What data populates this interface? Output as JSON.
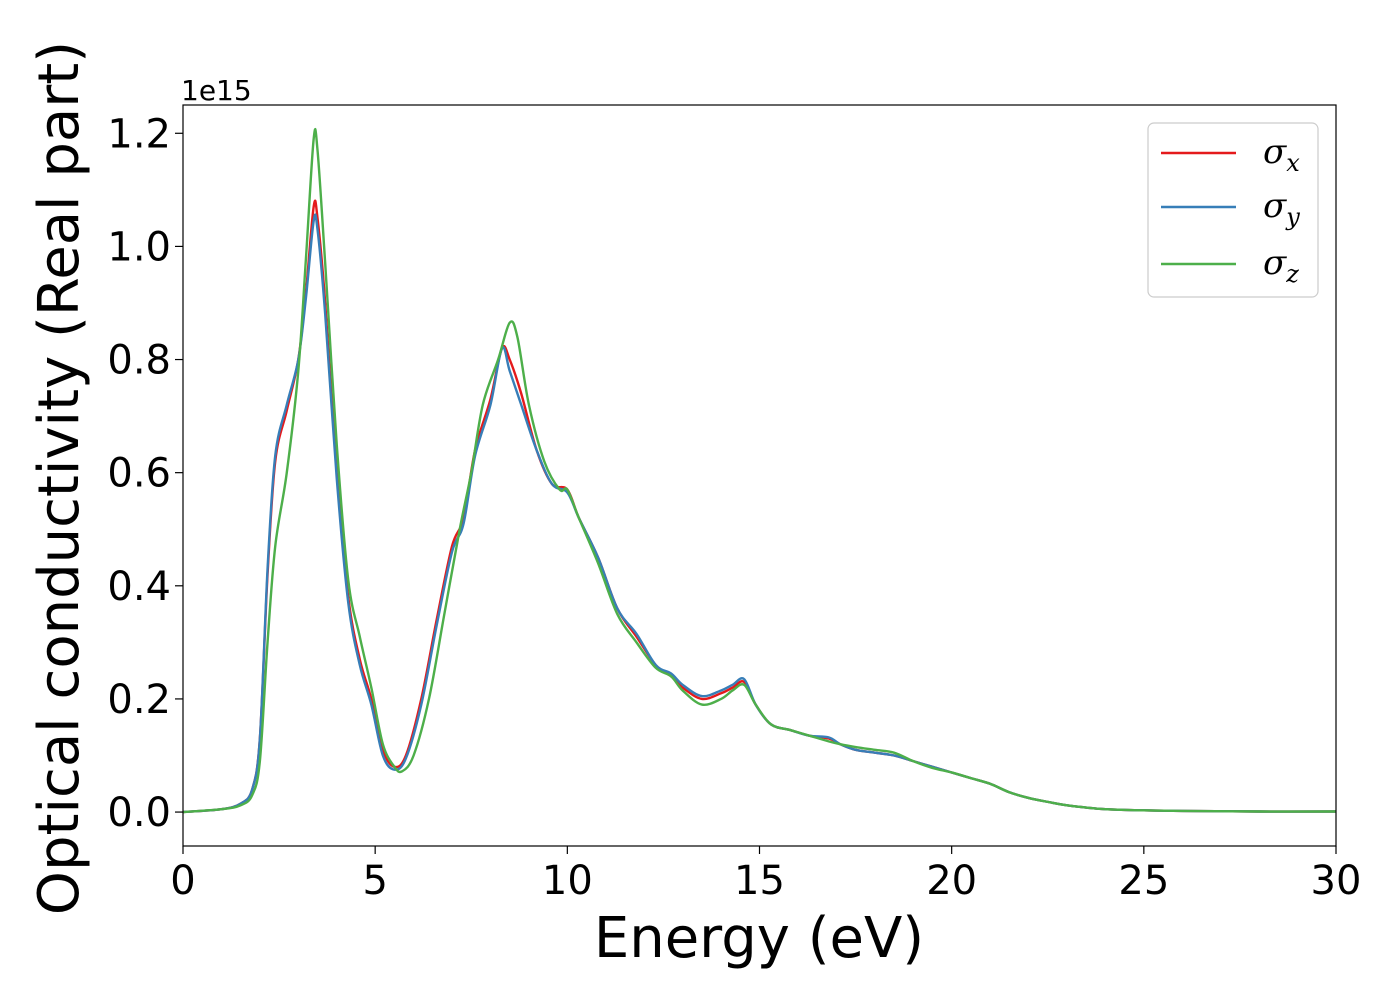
{
  "chart_data": {
    "type": "line",
    "xlabel": "Energy (eV)",
    "ylabel": "Optical conductivity (Real part)",
    "y_offset_label": "1e15",
    "xlim": [
      0,
      30
    ],
    "ylim": [
      -0.06,
      1.25
    ],
    "x_ticks": [
      0,
      5,
      10,
      15,
      20,
      25,
      30
    ],
    "x_tick_labels": [
      "0",
      "5",
      "10",
      "15",
      "20",
      "25",
      "30"
    ],
    "y_ticks": [
      0.0,
      0.2,
      0.4,
      0.6,
      0.8,
      1.0,
      1.2
    ],
    "y_tick_labels": [
      "0.0",
      "0.2",
      "0.4",
      "0.6",
      "0.8",
      "1.0",
      "1.2"
    ],
    "grid": false,
    "legend_position": "top-right",
    "series": [
      {
        "name": "σx",
        "symbol": "σ",
        "subscript": "x",
        "color": "#e41a1c",
        "points": [
          [
            0,
            0
          ],
          [
            1,
            0.005
          ],
          [
            1.5,
            0.015
          ],
          [
            1.8,
            0.04
          ],
          [
            2,
            0.13
          ],
          [
            2.2,
            0.42
          ],
          [
            2.4,
            0.62
          ],
          [
            2.7,
            0.71
          ],
          [
            3.0,
            0.8
          ],
          [
            3.2,
            0.92
          ],
          [
            3.4,
            1.07
          ],
          [
            3.5,
            1.05
          ],
          [
            3.7,
            0.9
          ],
          [
            4.0,
            0.6
          ],
          [
            4.3,
            0.38
          ],
          [
            4.6,
            0.27
          ],
          [
            4.9,
            0.2
          ],
          [
            5.2,
            0.11
          ],
          [
            5.5,
            0.08
          ],
          [
            5.8,
            0.1
          ],
          [
            6.2,
            0.2
          ],
          [
            6.6,
            0.34
          ],
          [
            7.0,
            0.47
          ],
          [
            7.3,
            0.52
          ],
          [
            7.6,
            0.64
          ],
          [
            8.0,
            0.73
          ],
          [
            8.3,
            0.82
          ],
          [
            8.5,
            0.8
          ],
          [
            8.8,
            0.74
          ],
          [
            9.2,
            0.64
          ],
          [
            9.6,
            0.58
          ],
          [
            10.0,
            0.57
          ],
          [
            10.3,
            0.52
          ],
          [
            10.8,
            0.45
          ],
          [
            11.3,
            0.36
          ],
          [
            11.8,
            0.31
          ],
          [
            12.3,
            0.26
          ],
          [
            12.7,
            0.24
          ],
          [
            13.0,
            0.22
          ],
          [
            13.5,
            0.2
          ],
          [
            14.0,
            0.21
          ],
          [
            14.3,
            0.22
          ],
          [
            14.6,
            0.23
          ],
          [
            14.9,
            0.19
          ],
          [
            15.3,
            0.155
          ],
          [
            15.8,
            0.145
          ],
          [
            16.3,
            0.135
          ],
          [
            16.8,
            0.13
          ],
          [
            17.1,
            0.12
          ],
          [
            17.5,
            0.11
          ],
          [
            18.0,
            0.105
          ],
          [
            18.5,
            0.1
          ],
          [
            19.0,
            0.09
          ],
          [
            19.5,
            0.08
          ],
          [
            20.0,
            0.07
          ],
          [
            20.5,
            0.06
          ],
          [
            21.0,
            0.05
          ],
          [
            21.5,
            0.035
          ],
          [
            22.0,
            0.025
          ],
          [
            22.5,
            0.018
          ],
          [
            23.0,
            0.012
          ],
          [
            24.0,
            0.005
          ],
          [
            25.0,
            0.003
          ],
          [
            26.0,
            0.002
          ],
          [
            28.0,
            0.001
          ],
          [
            30.0,
            0.001
          ]
        ]
      },
      {
        "name": "σy",
        "symbol": "σ",
        "subscript": "y",
        "color": "#377eb8",
        "points": [
          [
            0,
            0
          ],
          [
            1,
            0.005
          ],
          [
            1.5,
            0.015
          ],
          [
            1.8,
            0.04
          ],
          [
            2,
            0.13
          ],
          [
            2.2,
            0.43
          ],
          [
            2.4,
            0.63
          ],
          [
            2.7,
            0.72
          ],
          [
            3.0,
            0.8
          ],
          [
            3.2,
            0.91
          ],
          [
            3.4,
            1.045
          ],
          [
            3.5,
            1.03
          ],
          [
            3.7,
            0.88
          ],
          [
            4.0,
            0.59
          ],
          [
            4.3,
            0.37
          ],
          [
            4.6,
            0.26
          ],
          [
            4.9,
            0.19
          ],
          [
            5.2,
            0.1
          ],
          [
            5.5,
            0.075
          ],
          [
            5.8,
            0.095
          ],
          [
            6.2,
            0.19
          ],
          [
            6.6,
            0.33
          ],
          [
            7.0,
            0.46
          ],
          [
            7.3,
            0.51
          ],
          [
            7.6,
            0.63
          ],
          [
            8.0,
            0.72
          ],
          [
            8.3,
            0.82
          ],
          [
            8.5,
            0.78
          ],
          [
            8.8,
            0.72
          ],
          [
            9.2,
            0.64
          ],
          [
            9.6,
            0.58
          ],
          [
            10.0,
            0.565
          ],
          [
            10.3,
            0.52
          ],
          [
            10.8,
            0.45
          ],
          [
            11.3,
            0.36
          ],
          [
            11.8,
            0.315
          ],
          [
            12.3,
            0.26
          ],
          [
            12.7,
            0.245
          ],
          [
            13.0,
            0.225
          ],
          [
            13.5,
            0.205
          ],
          [
            14.0,
            0.215
          ],
          [
            14.3,
            0.225
          ],
          [
            14.6,
            0.235
          ],
          [
            14.9,
            0.19
          ],
          [
            15.3,
            0.155
          ],
          [
            15.8,
            0.145
          ],
          [
            16.3,
            0.135
          ],
          [
            16.8,
            0.132
          ],
          [
            17.1,
            0.12
          ],
          [
            17.5,
            0.11
          ],
          [
            18.0,
            0.105
          ],
          [
            18.5,
            0.1
          ],
          [
            19.0,
            0.09
          ],
          [
            19.5,
            0.08
          ],
          [
            20.0,
            0.07
          ],
          [
            20.5,
            0.06
          ],
          [
            21.0,
            0.05
          ],
          [
            21.5,
            0.035
          ],
          [
            22.0,
            0.025
          ],
          [
            22.5,
            0.018
          ],
          [
            23.0,
            0.012
          ],
          [
            24.0,
            0.005
          ],
          [
            25.0,
            0.003
          ],
          [
            26.0,
            0.002
          ],
          [
            28.0,
            0.001
          ],
          [
            30.0,
            0.001
          ]
        ]
      },
      {
        "name": "σz",
        "symbol": "σ",
        "subscript": "z",
        "color": "#4daf4a",
        "points": [
          [
            0,
            0
          ],
          [
            1,
            0.005
          ],
          [
            1.5,
            0.012
          ],
          [
            1.8,
            0.03
          ],
          [
            2,
            0.09
          ],
          [
            2.2,
            0.3
          ],
          [
            2.4,
            0.47
          ],
          [
            2.7,
            0.6
          ],
          [
            3.0,
            0.78
          ],
          [
            3.2,
            0.98
          ],
          [
            3.4,
            1.19
          ],
          [
            3.5,
            1.17
          ],
          [
            3.7,
            0.97
          ],
          [
            4.0,
            0.65
          ],
          [
            4.3,
            0.41
          ],
          [
            4.6,
            0.31
          ],
          [
            4.9,
            0.22
          ],
          [
            5.2,
            0.12
          ],
          [
            5.5,
            0.08
          ],
          [
            5.7,
            0.072
          ],
          [
            6.0,
            0.1
          ],
          [
            6.4,
            0.2
          ],
          [
            6.8,
            0.35
          ],
          [
            7.2,
            0.5
          ],
          [
            7.5,
            0.6
          ],
          [
            7.8,
            0.72
          ],
          [
            8.2,
            0.8
          ],
          [
            8.5,
            0.865
          ],
          [
            8.7,
            0.84
          ],
          [
            9.0,
            0.72
          ],
          [
            9.4,
            0.62
          ],
          [
            9.8,
            0.57
          ],
          [
            10.0,
            0.57
          ],
          [
            10.3,
            0.52
          ],
          [
            10.8,
            0.44
          ],
          [
            11.3,
            0.35
          ],
          [
            11.8,
            0.3
          ],
          [
            12.3,
            0.255
          ],
          [
            12.7,
            0.24
          ],
          [
            13.0,
            0.215
          ],
          [
            13.5,
            0.19
          ],
          [
            14.0,
            0.2
          ],
          [
            14.3,
            0.215
          ],
          [
            14.6,
            0.225
          ],
          [
            14.9,
            0.19
          ],
          [
            15.3,
            0.155
          ],
          [
            15.8,
            0.145
          ],
          [
            16.3,
            0.135
          ],
          [
            16.8,
            0.125
          ],
          [
            17.1,
            0.12
          ],
          [
            17.5,
            0.115
          ],
          [
            18.0,
            0.11
          ],
          [
            18.5,
            0.105
          ],
          [
            19.0,
            0.09
          ],
          [
            19.5,
            0.078
          ],
          [
            20.0,
            0.07
          ],
          [
            20.5,
            0.06
          ],
          [
            21.0,
            0.05
          ],
          [
            21.5,
            0.035
          ],
          [
            22.0,
            0.025
          ],
          [
            22.5,
            0.018
          ],
          [
            23.0,
            0.012
          ],
          [
            24.0,
            0.005
          ],
          [
            25.0,
            0.003
          ],
          [
            26.0,
            0.002
          ],
          [
            28.0,
            0.001
          ],
          [
            30.0,
            0.001
          ]
        ]
      }
    ]
  }
}
